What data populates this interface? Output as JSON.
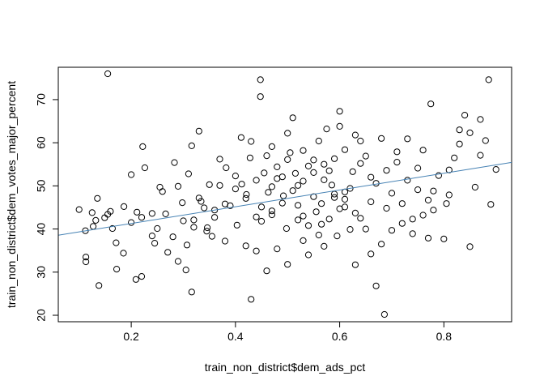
{
  "chart_data": {
    "type": "scatter",
    "title": "",
    "xlabel": "train_non_district$dem_ads_pct",
    "ylabel": "train_non_district$dem_votes_major_percent",
    "xlim": [
      0.06,
      0.93
    ],
    "ylim": [
      18.5,
      77.5
    ],
    "x_ticks": [
      0.2,
      0.4,
      0.6,
      0.8
    ],
    "x_tick_labels": [
      "0.2",
      "0.4",
      "0.6",
      "0.8"
    ],
    "y_ticks": [
      20,
      30,
      40,
      50,
      60,
      70
    ],
    "y_tick_labels": [
      "20",
      "30",
      "40",
      "50",
      "60",
      "70"
    ],
    "grid": false,
    "fit_line": {
      "intercept": 37.4,
      "slope": 19.4,
      "color": "#4682b4"
    },
    "point_color": "#000000",
    "points": [
      [
        0.155,
        76.0
      ],
      [
        0.448,
        74.6
      ],
      [
        0.448,
        70.7
      ],
      [
        0.886,
        74.6
      ],
      [
        0.775,
        69.0
      ],
      [
        0.686,
        20.2
      ],
      [
        0.43,
        23.7
      ],
      [
        0.316,
        25.4
      ],
      [
        0.138,
        26.9
      ],
      [
        0.209,
        28.3
      ],
      [
        0.22,
        29.0
      ],
      [
        0.113,
        33.5
      ],
      [
        0.113,
        32.4
      ],
      [
        0.185,
        34.4
      ],
      [
        0.171,
        36.8
      ],
      [
        0.172,
        30.7
      ],
      [
        0.132,
        42.0
      ],
      [
        0.127,
        40.6
      ],
      [
        0.149,
        42.6
      ],
      [
        0.1,
        44.5
      ],
      [
        0.112,
        39.6
      ],
      [
        0.125,
        43.8
      ],
      [
        0.135,
        47.1
      ],
      [
        0.155,
        43.4
      ],
      [
        0.16,
        44.1
      ],
      [
        0.164,
        40.1
      ],
      [
        0.186,
        45.2
      ],
      [
        0.2,
        41.5
      ],
      [
        0.211,
        43.9
      ],
      [
        0.22,
        42.7
      ],
      [
        0.2,
        52.6
      ],
      [
        0.226,
        54.2
      ],
      [
        0.222,
        59.1
      ],
      [
        0.24,
        38.4
      ],
      [
        0.245,
        36.7
      ],
      [
        0.255,
        49.7
      ],
      [
        0.266,
        43.5
      ],
      [
        0.283,
        55.4
      ],
      [
        0.298,
        46.1
      ],
      [
        0.307,
        36.3
      ],
      [
        0.32,
        42.1
      ],
      [
        0.334,
        46.4
      ],
      [
        0.346,
        40.3
      ],
      [
        0.355,
        38.3
      ],
      [
        0.33,
        62.7
      ],
      [
        0.316,
        59.3
      ],
      [
        0.37,
        50.1
      ],
      [
        0.382,
        54.2
      ],
      [
        0.39,
        45.4
      ],
      [
        0.403,
        40.9
      ],
      [
        0.411,
        61.2
      ],
      [
        0.412,
        50.4
      ],
      [
        0.421,
        48.0
      ],
      [
        0.428,
        56.5
      ],
      [
        0.44,
        42.8
      ],
      [
        0.45,
        45.1
      ],
      [
        0.455,
        53.0
      ],
      [
        0.463,
        48.5
      ],
      [
        0.47,
        44.2
      ],
      [
        0.48,
        51.7
      ],
      [
        0.492,
        47.7
      ],
      [
        0.498,
        40.1
      ],
      [
        0.505,
        57.7
      ],
      [
        0.51,
        65.8
      ],
      [
        0.515,
        52.9
      ],
      [
        0.52,
        50.1
      ],
      [
        0.53,
        43.0
      ],
      [
        0.54,
        54.6
      ],
      [
        0.55,
        47.5
      ],
      [
        0.56,
        60.4
      ],
      [
        0.565,
        41.1
      ],
      [
        0.57,
        36.0
      ],
      [
        0.58,
        53.5
      ],
      [
        0.59,
        56.3
      ],
      [
        0.595,
        38.4
      ],
      [
        0.6,
        63.8
      ],
      [
        0.61,
        46.9
      ],
      [
        0.62,
        49.4
      ],
      [
        0.63,
        31.7
      ],
      [
        0.64,
        55.2
      ],
      [
        0.65,
        40.0
      ],
      [
        0.66,
        52.0
      ],
      [
        0.67,
        26.8
      ],
      [
        0.68,
        61.0
      ],
      [
        0.69,
        44.8
      ],
      [
        0.7,
        48.3
      ],
      [
        0.71,
        57.9
      ],
      [
        0.72,
        45.9
      ],
      [
        0.73,
        51.3
      ],
      [
        0.74,
        42.3
      ],
      [
        0.75,
        54.1
      ],
      [
        0.76,
        58.3
      ],
      [
        0.77,
        37.9
      ],
      [
        0.78,
        48.8
      ],
      [
        0.8,
        37.7
      ],
      [
        0.805,
        45.9
      ],
      [
        0.81,
        53.7
      ],
      [
        0.82,
        56.5
      ],
      [
        0.83,
        63.0
      ],
      [
        0.84,
        66.4
      ],
      [
        0.85,
        35.9
      ],
      [
        0.86,
        49.7
      ],
      [
        0.87,
        57.1
      ],
      [
        0.88,
        60.5
      ],
      [
        0.89,
        45.7
      ],
      [
        0.9,
        53.8
      ],
      [
        0.575,
        63.2
      ],
      [
        0.6,
        67.3
      ],
      [
        0.64,
        60.4
      ],
      [
        0.52,
        45.5
      ],
      [
        0.46,
        57.0
      ],
      [
        0.47,
        49.8
      ],
      [
        0.49,
        52.1
      ],
      [
        0.53,
        37.3
      ],
      [
        0.555,
        44.0
      ],
      [
        0.585,
        50.2
      ],
      [
        0.61,
        48.6
      ],
      [
        0.625,
        53.3
      ],
      [
        0.66,
        46.3
      ],
      [
        0.38,
        37.2
      ],
      [
        0.36,
        44.4
      ],
      [
        0.345,
        39.5
      ],
      [
        0.42,
        36.1
      ],
      [
        0.44,
        34.9
      ],
      [
        0.46,
        30.3
      ],
      [
        0.48,
        35.4
      ],
      [
        0.5,
        31.8
      ],
      [
        0.54,
        34.0
      ],
      [
        0.565,
        45.9
      ],
      [
        0.58,
        42.3
      ],
      [
        0.6,
        44.7
      ],
      [
        0.62,
        39.9
      ],
      [
        0.64,
        42.5
      ],
      [
        0.27,
        34.6
      ],
      [
        0.28,
        38.2
      ],
      [
        0.29,
        32.5
      ],
      [
        0.305,
        30.5
      ],
      [
        0.25,
        40.1
      ],
      [
        0.24,
        43.6
      ],
      [
        0.26,
        48.7
      ],
      [
        0.29,
        49.9
      ],
      [
        0.31,
        52.8
      ],
      [
        0.33,
        47.2
      ],
      [
        0.35,
        50.3
      ],
      [
        0.37,
        56.2
      ],
      [
        0.4,
        52.3
      ],
      [
        0.43,
        60.3
      ],
      [
        0.47,
        59.1
      ],
      [
        0.5,
        62.2
      ],
      [
        0.53,
        58.2
      ],
      [
        0.55,
        56.0
      ],
      [
        0.57,
        51.4
      ],
      [
        0.59,
        48.1
      ],
      [
        0.61,
        58.4
      ],
      [
        0.63,
        61.8
      ],
      [
        0.65,
        56.9
      ],
      [
        0.67,
        50.6
      ],
      [
        0.69,
        53.6
      ],
      [
        0.71,
        55.5
      ],
      [
        0.73,
        60.9
      ],
      [
        0.75,
        49.1
      ],
      [
        0.77,
        46.7
      ],
      [
        0.79,
        52.4
      ],
      [
        0.81,
        47.9
      ],
      [
        0.83,
        59.7
      ],
      [
        0.85,
        62.3
      ],
      [
        0.87,
        65.4
      ],
      [
        0.72,
        41.3
      ],
      [
        0.74,
        38.9
      ],
      [
        0.76,
        43.2
      ],
      [
        0.78,
        44.4
      ],
      [
        0.66,
        34.2
      ],
      [
        0.68,
        36.5
      ],
      [
        0.7,
        39.7
      ],
      [
        0.45,
        41.8
      ],
      [
        0.47,
        43.3
      ],
      [
        0.49,
        46.0
      ],
      [
        0.51,
        48.9
      ],
      [
        0.53,
        51.1
      ],
      [
        0.55,
        53.1
      ],
      [
        0.57,
        55.0
      ],
      [
        0.59,
        47.3
      ],
      [
        0.61,
        45.1
      ],
      [
        0.63,
        43.7
      ],
      [
        0.52,
        42.1
      ],
      [
        0.54,
        40.8
      ],
      [
        0.56,
        38.6
      ],
      [
        0.5,
        56.1
      ],
      [
        0.48,
        54.4
      ],
      [
        0.44,
        51.3
      ],
      [
        0.42,
        47.1
      ],
      [
        0.4,
        49.3
      ],
      [
        0.38,
        45.8
      ],
      [
        0.36,
        42.7
      ],
      [
        0.34,
        44.9
      ],
      [
        0.32,
        40.4
      ],
      [
        0.3,
        41.9
      ]
    ]
  }
}
